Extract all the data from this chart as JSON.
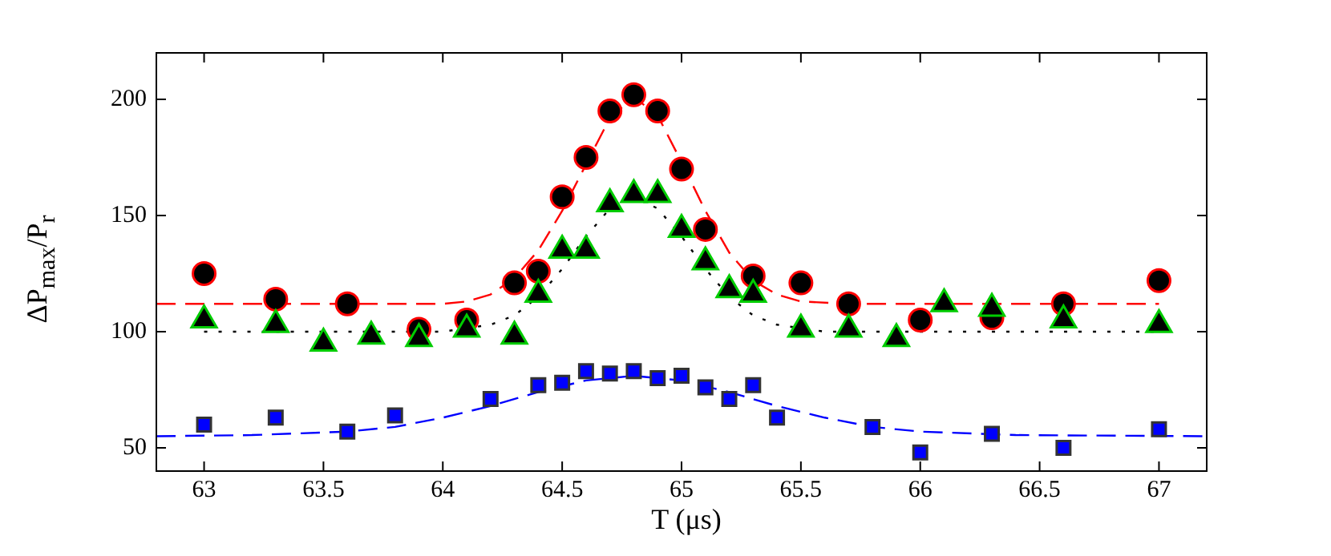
{
  "chart_data": {
    "type": "scatter",
    "xlabel": "T (μs)",
    "ylabel": "ΔP$_{max}$/P$_{r}$",
    "xlim": [
      62.8,
      67.2
    ],
    "xticks": [
      63,
      63.5,
      64,
      64.5,
      65,
      65.5,
      66,
      66.5,
      67
    ],
    "ylim": [
      40,
      220
    ],
    "yticks": [
      50,
      100,
      150,
      200
    ],
    "grid": false,
    "legend": false,
    "series": [
      {
        "type": "line",
        "marker": "none",
        "line_style": "dashed",
        "color": "#ff0000",
        "x": [
          62.8,
          63,
          64.0,
          64.1,
          64.2,
          64.3,
          64.4,
          64.5,
          64.6,
          64.7,
          64.8,
          64.9,
          65.0,
          65.1,
          65.2,
          65.3,
          65.4,
          65.5,
          65.7,
          67
        ],
        "values": [
          112,
          112,
          112,
          113,
          116,
          123,
          135,
          152,
          172,
          192,
          201,
          193,
          173,
          152,
          134,
          122,
          116,
          113,
          112,
          112
        ]
      },
      {
        "type": "line",
        "marker": "none",
        "line_style": "dotted",
        "color": "#000000",
        "x": [
          63,
          64.0,
          64.2,
          64.3,
          64.4,
          64.5,
          64.6,
          64.7,
          64.8,
          64.9,
          65.0,
          65.1,
          65.2,
          65.3,
          65.4,
          65.6,
          67
        ],
        "values": [
          100,
          100,
          103,
          107,
          115,
          127,
          141,
          153,
          158,
          153,
          141,
          127,
          115,
          107,
          103,
          100,
          100
        ]
      },
      {
        "type": "line",
        "marker": "none",
        "line_style": "dashed",
        "color": "#0000ff",
        "x": [
          62.8,
          63.2,
          63.6,
          63.8,
          64.0,
          64.2,
          64.4,
          64.6,
          64.8,
          65.0,
          65.2,
          65.4,
          65.6,
          65.8,
          66.0,
          66.4,
          67.2
        ],
        "values": [
          55,
          55.5,
          57,
          59,
          63,
          68,
          74,
          79,
          81,
          79,
          74,
          68,
          63,
          59,
          57,
          55.5,
          55
        ]
      },
      {
        "marker": "triangle",
        "color": "#00cc00",
        "x": [
          63,
          63.3,
          63.5,
          63.7,
          63.9,
          64.1,
          64.3,
          64.4,
          64.5,
          64.6,
          64.7,
          64.8,
          64.9,
          65.0,
          65.1,
          65.2,
          65.3,
          65.5,
          65.7,
          65.9,
          66.1,
          66.3,
          66.6,
          67
        ],
        "values": [
          105,
          103,
          95,
          98,
          97,
          101,
          98,
          116,
          135,
          135,
          155,
          159,
          159,
          144,
          130,
          118,
          116,
          101,
          101,
          97,
          112,
          110,
          105,
          103
        ]
      },
      {
        "marker": "circle",
        "color": "#ff0000",
        "x": [
          63,
          63.3,
          63.6,
          63.9,
          64.1,
          64.3,
          64.4,
          64.5,
          64.6,
          64.7,
          64.8,
          64.9,
          65.0,
          65.1,
          65.3,
          65.5,
          65.7,
          66.0,
          66.3,
          66.6,
          67
        ],
        "values": [
          125,
          114,
          112,
          101,
          105,
          121,
          126,
          158,
          175,
          195,
          202,
          195,
          170,
          144,
          124,
          121,
          112,
          105,
          106,
          112,
          122
        ]
      },
      {
        "marker": "square",
        "color": "#0000ff",
        "x": [
          63,
          63.3,
          63.6,
          63.8,
          64.2,
          64.4,
          64.5,
          64.6,
          64.7,
          64.8,
          64.9,
          65.0,
          65.1,
          65.2,
          65.3,
          65.4,
          65.8,
          66.0,
          66.3,
          66.6,
          67
        ],
        "values": [
          60,
          63,
          57,
          64,
          71,
          77,
          78,
          83,
          82,
          83,
          80,
          81,
          76,
          71,
          77,
          63,
          59,
          48,
          56,
          50,
          58
        ]
      }
    ]
  }
}
